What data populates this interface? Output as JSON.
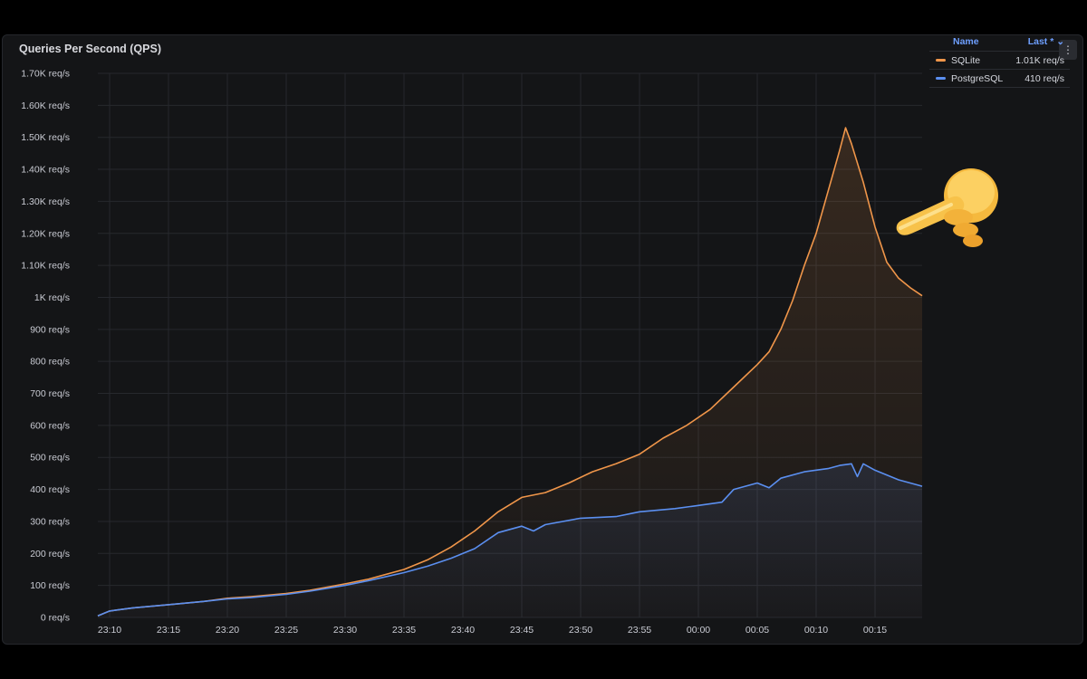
{
  "panel": {
    "title": "Queries Per Second (QPS)",
    "menu_icon": "vertical-ellipsis-icon"
  },
  "legend": {
    "header_name": "Name",
    "header_last": "Last *",
    "header_sort_icon": "chevron-down-icon",
    "rows": [
      {
        "name": "SQLite",
        "last": "1.01K req/s",
        "color": "#f0964a"
      },
      {
        "name": "PostgreSQL",
        "last": "410 req/s",
        "color": "#5b8ff0"
      }
    ]
  },
  "decoration": {
    "icon": "pointing-hand-emoji-icon"
  },
  "chart_data": {
    "type": "line",
    "title": "Queries Per Second (QPS)",
    "xlabel": "",
    "ylabel": "",
    "y_tick_labels": [
      "0 req/s",
      "100 req/s",
      "200 req/s",
      "300 req/s",
      "400 req/s",
      "500 req/s",
      "600 req/s",
      "700 req/s",
      "800 req/s",
      "900 req/s",
      "1K req/s",
      "1.10K req/s",
      "1.20K req/s",
      "1.30K req/s",
      "1.40K req/s",
      "1.50K req/s",
      "1.60K req/s",
      "1.70K req/s"
    ],
    "ylim": [
      0,
      1700
    ],
    "x_tick_labels": [
      "23:10",
      "23:15",
      "23:20",
      "23:25",
      "23:30",
      "23:35",
      "23:40",
      "23:45",
      "23:50",
      "23:55",
      "00:00",
      "00:05",
      "00:10",
      "00:15"
    ],
    "x_range": [
      "23:09",
      "00:19"
    ],
    "grid": true,
    "legend_position": "top-right",
    "series": [
      {
        "name": "SQLite",
        "color": "#f0964a",
        "points": [
          [
            "23:09",
            5
          ],
          [
            "23:10",
            20
          ],
          [
            "23:12",
            30
          ],
          [
            "23:15",
            40
          ],
          [
            "23:18",
            50
          ],
          [
            "23:20",
            60
          ],
          [
            "23:22",
            65
          ],
          [
            "23:25",
            75
          ],
          [
            "23:27",
            85
          ],
          [
            "23:30",
            105
          ],
          [
            "23:32",
            120
          ],
          [
            "23:35",
            150
          ],
          [
            "23:37",
            180
          ],
          [
            "23:39",
            220
          ],
          [
            "23:41",
            270
          ],
          [
            "23:43",
            330
          ],
          [
            "23:45",
            375
          ],
          [
            "23:47",
            390
          ],
          [
            "23:49",
            420
          ],
          [
            "23:51",
            455
          ],
          [
            "23:53",
            480
          ],
          [
            "23:55",
            510
          ],
          [
            "23:57",
            560
          ],
          [
            "23:59",
            600
          ],
          [
            "00:01",
            650
          ],
          [
            "00:03",
            720
          ],
          [
            "00:05",
            790
          ],
          [
            "00:06",
            830
          ],
          [
            "00:07",
            900
          ],
          [
            "00:08",
            990
          ],
          [
            "00:09",
            1100
          ],
          [
            "00:10",
            1200
          ],
          [
            "00:11",
            1330
          ],
          [
            "00:12",
            1460
          ],
          [
            "00:12.5",
            1530
          ],
          [
            "00:13",
            1480
          ],
          [
            "00:14",
            1360
          ],
          [
            "00:15",
            1220
          ],
          [
            "00:16",
            1110
          ],
          [
            "00:17",
            1060
          ],
          [
            "00:18",
            1030
          ],
          [
            "00:19",
            1005
          ]
        ]
      },
      {
        "name": "PostgreSQL",
        "color": "#5b8ff0",
        "points": [
          [
            "23:09",
            5
          ],
          [
            "23:10",
            20
          ],
          [
            "23:12",
            30
          ],
          [
            "23:15",
            40
          ],
          [
            "23:18",
            50
          ],
          [
            "23:20",
            58
          ],
          [
            "23:22",
            62
          ],
          [
            "23:25",
            72
          ],
          [
            "23:27",
            82
          ],
          [
            "23:30",
            100
          ],
          [
            "23:32",
            115
          ],
          [
            "23:35",
            140
          ],
          [
            "23:37",
            160
          ],
          [
            "23:39",
            185
          ],
          [
            "23:41",
            215
          ],
          [
            "23:43",
            265
          ],
          [
            "23:45",
            285
          ],
          [
            "23:46",
            270
          ],
          [
            "23:47",
            290
          ],
          [
            "23:50",
            310
          ],
          [
            "23:53",
            315
          ],
          [
            "23:55",
            330
          ],
          [
            "23:58",
            340
          ],
          [
            "00:00",
            350
          ],
          [
            "00:02",
            360
          ],
          [
            "00:03",
            400
          ],
          [
            "00:05",
            420
          ],
          [
            "00:06",
            405
          ],
          [
            "00:07",
            435
          ],
          [
            "00:09",
            455
          ],
          [
            "00:11",
            465
          ],
          [
            "00:12",
            475
          ],
          [
            "00:13",
            480
          ],
          [
            "00:13.5",
            440
          ],
          [
            "00:14",
            480
          ],
          [
            "00:15",
            460
          ],
          [
            "00:17",
            430
          ],
          [
            "00:19",
            410
          ]
        ]
      }
    ]
  }
}
